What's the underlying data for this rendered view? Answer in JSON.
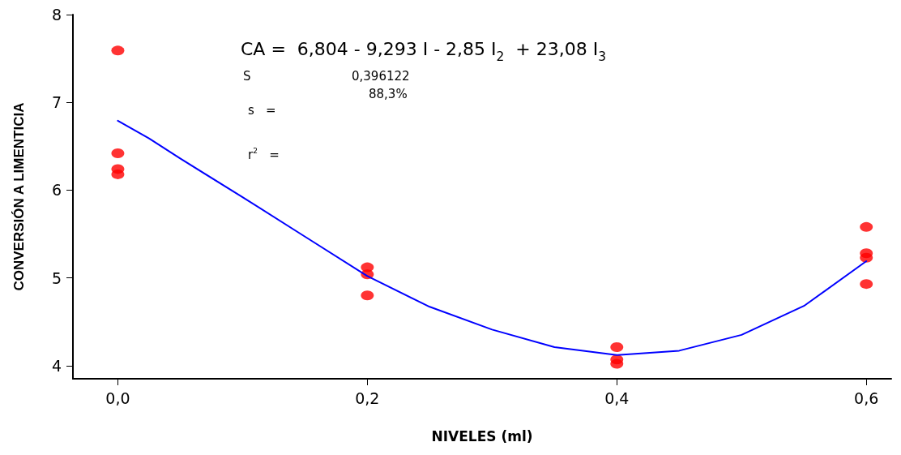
{
  "chart_data": {
    "type": "scatter",
    "xlabel": "NIVELES (ml)",
    "ylabel": "CONVERSIÓN A LIMENTICIA",
    "annotations": [
      "CA =  6,804 - 9,293 I - 2,85 I$_{2}$  + 23,08 I$_{3}$",
      "S",
      "0,396122",
      "88,3%",
      "s   =",
      "r$^{2}$   ="
    ],
    "xlim": [
      -0.036,
      0.62
    ],
    "ylim": [
      3.85,
      8
    ],
    "xticks": [
      {
        "value": 0,
        "label": "0,0"
      },
      {
        "value": 0.2,
        "label": "0,2"
      },
      {
        "value": 0.4,
        "label": "0,4"
      },
      {
        "value": 0.6,
        "label": "0,6"
      }
    ],
    "yticks": [
      4,
      5,
      6,
      7,
      8
    ],
    "grid": false,
    "series": [
      {
        "color": "#ff0000",
        "marker": "circle",
        "x": [
          0,
          0,
          0,
          0,
          0.2,
          0.2,
          0.2,
          0.4,
          0.4,
          0.4,
          0.6,
          0.6,
          0.6,
          0.6
        ],
        "values": [
          7.59,
          6.42,
          6.24,
          6.18,
          5.12,
          5.04,
          4.8,
          4.21,
          4.07,
          4.02,
          5.58,
          5.28,
          5.23,
          4.93
        ]
      },
      {
        "type": "line",
        "color": "#0000ff",
        "marker": "none",
        "line_style": "solid",
        "x": [
          0,
          0.025,
          0.05,
          0.1,
          0.15,
          0.2,
          0.25,
          0.3,
          0.35,
          0.4,
          0.45,
          0.5,
          0.55,
          0.6
        ],
        "values": [
          6.79,
          6.59,
          6.36,
          5.92,
          5.47,
          5.02,
          4.67,
          4.41,
          4.21,
          4.12,
          4.17,
          4.35,
          4.68,
          5.19
        ]
      }
    ]
  }
}
